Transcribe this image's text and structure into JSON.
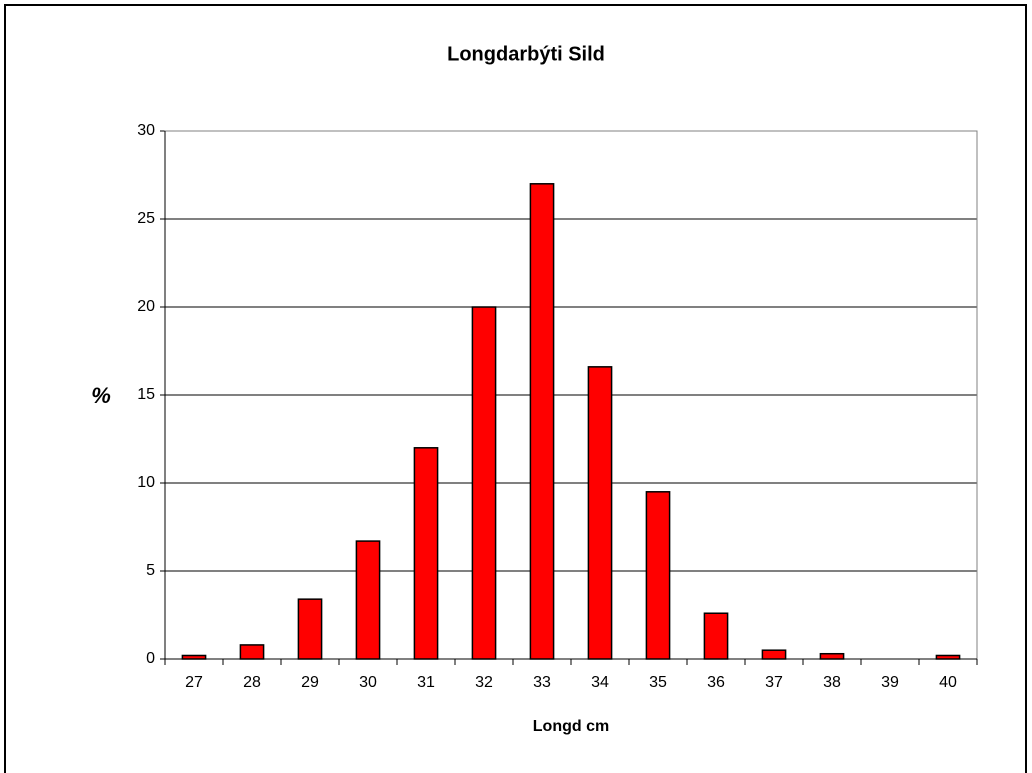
{
  "chart_data": {
    "type": "bar",
    "title": "Longdarbýti Sild",
    "x_label": "Longd cm",
    "y_label": "%",
    "categories": [
      "27",
      "28",
      "29",
      "30",
      "31",
      "32",
      "33",
      "34",
      "35",
      "36",
      "37",
      "38",
      "39",
      "40"
    ],
    "values": [
      0.2,
      0.8,
      3.4,
      6.7,
      12,
      20,
      27,
      16.6,
      9.5,
      2.6,
      0.5,
      0.3,
      0,
      0.2
    ],
    "color": "#ff0000",
    "ylim": [
      0,
      30
    ],
    "yticks": [
      0,
      5,
      10,
      15,
      20,
      25,
      30
    ],
    "grid": true
  }
}
